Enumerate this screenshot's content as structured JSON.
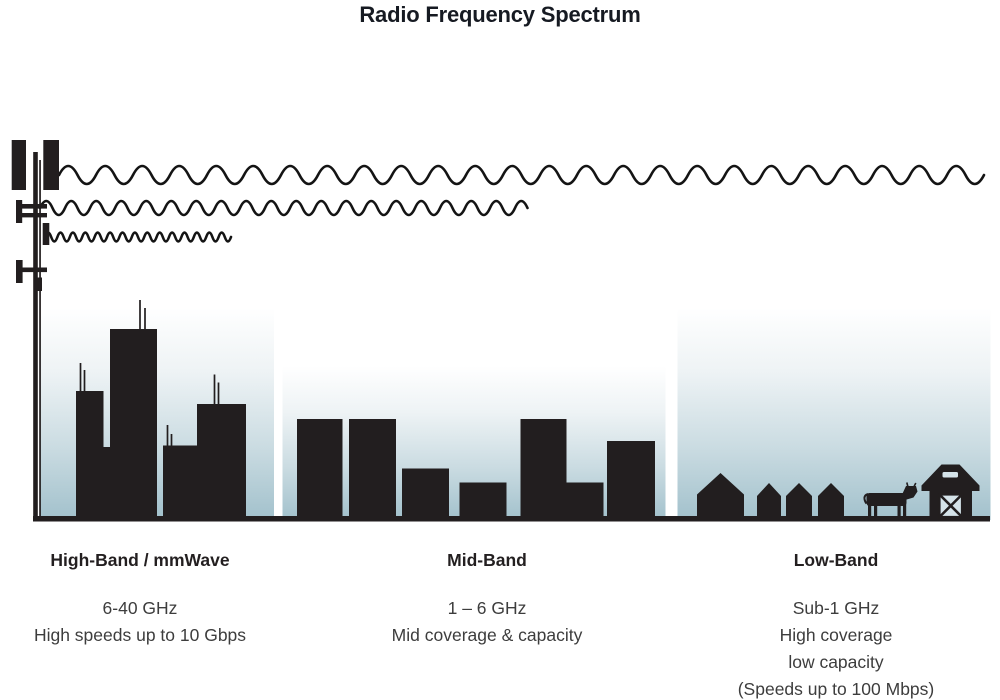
{
  "title": "Radio Frequency Spectrum",
  "colors": {
    "silhouette": "#221e1f",
    "wave_stroke": "#141414",
    "sky_gradient_top": "#ffffff",
    "sky_gradient_bottom": "#a2c1cc",
    "title_text": "#161a22",
    "body_text": "#3d3d3d"
  },
  "tower": {
    "icon": "cell-tower-icon"
  },
  "waves": [
    {
      "icon": "radio-wave-long-icon",
      "band": "Low-Band",
      "wavelength": "long",
      "reach": "full-width"
    },
    {
      "icon": "radio-wave-medium-icon",
      "band": "Mid-Band",
      "wavelength": "medium",
      "reach": "half-width"
    },
    {
      "icon": "radio-wave-short-icon",
      "band": "High-Band",
      "wavelength": "short",
      "reach": "short"
    }
  ],
  "bands": [
    {
      "label": "High-Band / mmWave",
      "lines": [
        "6-40 GHz",
        "High speeds up to 10 Gbps"
      ],
      "scene_icon": "city-skyline-antennas-icon"
    },
    {
      "label": "Mid-Band",
      "lines": [
        "1 – 6 GHz",
        "Mid coverage & capacity"
      ],
      "scene_icon": "midrise-buildings-icon"
    },
    {
      "label": "Low-Band",
      "lines": [
        "Sub-1 GHz",
        "High coverage",
        "low capacity",
        "(Speeds up to 100 Mbps)"
      ],
      "scene_icon": "houses-cow-barn-icon"
    }
  ]
}
